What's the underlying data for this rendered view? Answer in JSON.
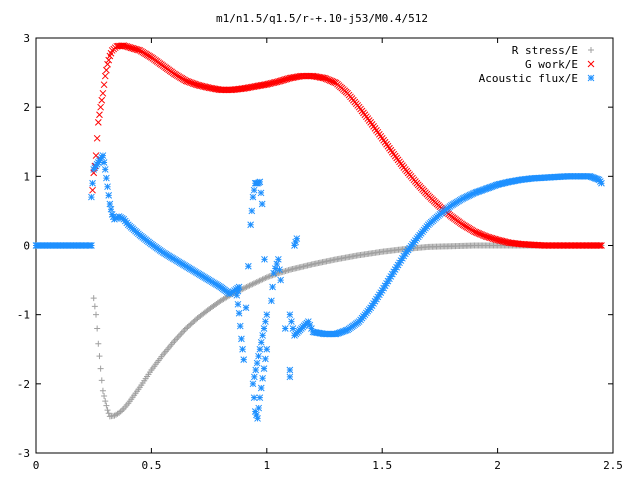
{
  "chart_data": {
    "type": "scatter",
    "title": "m1/n1.5/q1.5/r-+.10-j53/M0.4/512",
    "xlabel": "",
    "ylabel": "",
    "xlim": [
      0,
      2.5
    ],
    "ylim": [
      -3,
      3
    ],
    "x_ticks": [
      "0",
      "0.5",
      "1",
      "1.5",
      "2",
      "2.5"
    ],
    "y_ticks": [
      "-3",
      "-2",
      "-1",
      "0",
      "1",
      "2",
      "3"
    ],
    "grid": false,
    "legend_position": "top-right",
    "series": [
      {
        "name": "R stress/E",
        "marker": "+",
        "color": "#a0a0a0",
        "points": [
          [
            0.0,
            0.0
          ],
          [
            0.05,
            0.0
          ],
          [
            0.1,
            0.0
          ],
          [
            0.15,
            0.0
          ],
          [
            0.2,
            0.0
          ],
          [
            0.24,
            0.0
          ],
          [
            0.25,
            -0.76
          ],
          [
            0.26,
            -1.0
          ],
          [
            0.265,
            -1.2
          ],
          [
            0.27,
            -1.42
          ],
          [
            0.275,
            -1.6
          ],
          [
            0.28,
            -1.78
          ],
          [
            0.285,
            -1.95
          ],
          [
            0.29,
            -2.1
          ],
          [
            0.3,
            -2.25
          ],
          [
            0.31,
            -2.38
          ],
          [
            0.32,
            -2.47
          ],
          [
            0.34,
            -2.46
          ],
          [
            0.36,
            -2.42
          ],
          [
            0.38,
            -2.36
          ],
          [
            0.4,
            -2.28
          ],
          [
            0.45,
            -2.05
          ],
          [
            0.5,
            -1.8
          ],
          [
            0.55,
            -1.58
          ],
          [
            0.6,
            -1.38
          ],
          [
            0.65,
            -1.2
          ],
          [
            0.7,
            -1.05
          ],
          [
            0.75,
            -0.92
          ],
          [
            0.8,
            -0.8
          ],
          [
            0.85,
            -0.7
          ],
          [
            0.9,
            -0.62
          ],
          [
            0.95,
            -0.54
          ],
          [
            1.0,
            -0.46
          ],
          [
            1.05,
            -0.4
          ],
          [
            1.1,
            -0.35
          ],
          [
            1.2,
            -0.27
          ],
          [
            1.3,
            -0.2
          ],
          [
            1.4,
            -0.14
          ],
          [
            1.5,
            -0.09
          ],
          [
            1.6,
            -0.05
          ],
          [
            1.7,
            -0.02
          ],
          [
            1.8,
            -0.01
          ],
          [
            1.9,
            0.0
          ],
          [
            2.0,
            0.0
          ],
          [
            2.1,
            0.0
          ],
          [
            2.2,
            0.0
          ],
          [
            2.3,
            0.0
          ],
          [
            2.45,
            0.0
          ]
        ]
      },
      {
        "name": "G work/E",
        "marker": "x",
        "color": "#ff0000",
        "points": [
          [
            0.245,
            0.8
          ],
          [
            0.25,
            1.05
          ],
          [
            0.255,
            1.15
          ],
          [
            0.26,
            1.3
          ],
          [
            0.265,
            1.55
          ],
          [
            0.27,
            1.78
          ],
          [
            0.28,
            2.0
          ],
          [
            0.29,
            2.2
          ],
          [
            0.3,
            2.45
          ],
          [
            0.31,
            2.62
          ],
          [
            0.32,
            2.74
          ],
          [
            0.33,
            2.82
          ],
          [
            0.35,
            2.88
          ],
          [
            0.38,
            2.89
          ],
          [
            0.4,
            2.87
          ],
          [
            0.45,
            2.82
          ],
          [
            0.5,
            2.72
          ],
          [
            0.55,
            2.6
          ],
          [
            0.6,
            2.48
          ],
          [
            0.65,
            2.38
          ],
          [
            0.7,
            2.32
          ],
          [
            0.75,
            2.28
          ],
          [
            0.8,
            2.25
          ],
          [
            0.85,
            2.25
          ],
          [
            0.9,
            2.27
          ],
          [
            0.95,
            2.3
          ],
          [
            1.0,
            2.33
          ],
          [
            1.05,
            2.37
          ],
          [
            1.1,
            2.42
          ],
          [
            1.15,
            2.45
          ],
          [
            1.2,
            2.45
          ],
          [
            1.25,
            2.42
          ],
          [
            1.3,
            2.35
          ],
          [
            1.35,
            2.2
          ],
          [
            1.4,
            2.0
          ],
          [
            1.45,
            1.78
          ],
          [
            1.5,
            1.55
          ],
          [
            1.55,
            1.32
          ],
          [
            1.6,
            1.1
          ],
          [
            1.65,
            0.9
          ],
          [
            1.7,
            0.72
          ],
          [
            1.75,
            0.56
          ],
          [
            1.8,
            0.42
          ],
          [
            1.85,
            0.3
          ],
          [
            1.9,
            0.2
          ],
          [
            1.95,
            0.13
          ],
          [
            2.0,
            0.08
          ],
          [
            2.05,
            0.04
          ],
          [
            2.1,
            0.02
          ],
          [
            2.15,
            0.01
          ],
          [
            2.2,
            0.0
          ],
          [
            2.3,
            0.0
          ],
          [
            2.4,
            0.0
          ],
          [
            2.45,
            0.0
          ]
        ]
      },
      {
        "name": "Acoustic flux/E",
        "marker": "*",
        "color": "#1e90ff",
        "points": [
          [
            0.0,
            0.0
          ],
          [
            0.05,
            0.0
          ],
          [
            0.1,
            0.0
          ],
          [
            0.15,
            0.0
          ],
          [
            0.2,
            0.0
          ],
          [
            0.24,
            0.0
          ],
          [
            0.24,
            0.7
          ],
          [
            0.25,
            1.1
          ],
          [
            0.26,
            1.15
          ],
          [
            0.27,
            1.2
          ],
          [
            0.28,
            1.25
          ],
          [
            0.29,
            1.3
          ],
          [
            0.3,
            1.1
          ],
          [
            0.31,
            0.85
          ],
          [
            0.32,
            0.6
          ],
          [
            0.33,
            0.45
          ],
          [
            0.34,
            0.38
          ],
          [
            0.36,
            0.42
          ],
          [
            0.38,
            0.38
          ],
          [
            0.4,
            0.3
          ],
          [
            0.45,
            0.15
          ],
          [
            0.5,
            0.02
          ],
          [
            0.55,
            -0.1
          ],
          [
            0.6,
            -0.2
          ],
          [
            0.65,
            -0.3
          ],
          [
            0.7,
            -0.4
          ],
          [
            0.75,
            -0.5
          ],
          [
            0.8,
            -0.6
          ],
          [
            0.84,
            -0.7
          ],
          [
            0.86,
            -0.65
          ],
          [
            0.88,
            -0.6
          ],
          [
            0.87,
            -0.72
          ],
          [
            0.88,
            -0.98
          ],
          [
            0.89,
            -1.35
          ],
          [
            0.9,
            -1.65
          ],
          [
            0.91,
            -0.9
          ],
          [
            0.92,
            -0.3
          ],
          [
            0.93,
            0.3
          ],
          [
            0.94,
            0.7
          ],
          [
            0.95,
            0.9
          ],
          [
            0.96,
            0.9
          ],
          [
            0.97,
            0.92
          ],
          [
            0.98,
            0.6
          ],
          [
            0.99,
            -0.2
          ],
          [
            1.0,
            -1.0
          ],
          [
            0.94,
            -2.0
          ],
          [
            0.95,
            -2.4
          ],
          [
            0.96,
            -2.5
          ],
          [
            0.97,
            -2.2
          ],
          [
            1.0,
            -1.5
          ],
          [
            1.02,
            -0.8
          ],
          [
            1.03,
            -0.4
          ],
          [
            1.05,
            -0.2
          ],
          [
            1.06,
            -0.5
          ],
          [
            1.08,
            -1.2
          ],
          [
            1.1,
            -1.8
          ],
          [
            1.1,
            -1.9
          ],
          [
            1.12,
            0.0
          ],
          [
            1.13,
            0.1
          ],
          [
            1.1,
            -1.0
          ],
          [
            1.12,
            -1.3
          ],
          [
            1.15,
            -1.2
          ],
          [
            1.18,
            -1.1
          ],
          [
            1.2,
            -1.25
          ],
          [
            1.25,
            -1.28
          ],
          [
            1.3,
            -1.28
          ],
          [
            1.35,
            -1.22
          ],
          [
            1.4,
            -1.1
          ],
          [
            1.45,
            -0.9
          ],
          [
            1.5,
            -0.65
          ],
          [
            1.55,
            -0.38
          ],
          [
            1.6,
            -0.12
          ],
          [
            1.65,
            0.1
          ],
          [
            1.7,
            0.3
          ],
          [
            1.75,
            0.45
          ],
          [
            1.8,
            0.58
          ],
          [
            1.85,
            0.68
          ],
          [
            1.9,
            0.76
          ],
          [
            1.95,
            0.82
          ],
          [
            2.0,
            0.88
          ],
          [
            2.05,
            0.92
          ],
          [
            2.1,
            0.95
          ],
          [
            2.15,
            0.97
          ],
          [
            2.2,
            0.98
          ],
          [
            2.25,
            0.99
          ],
          [
            2.3,
            1.0
          ],
          [
            2.35,
            1.0
          ],
          [
            2.4,
            1.0
          ],
          [
            2.44,
            0.95
          ],
          [
            2.45,
            0.9
          ]
        ]
      }
    ]
  }
}
